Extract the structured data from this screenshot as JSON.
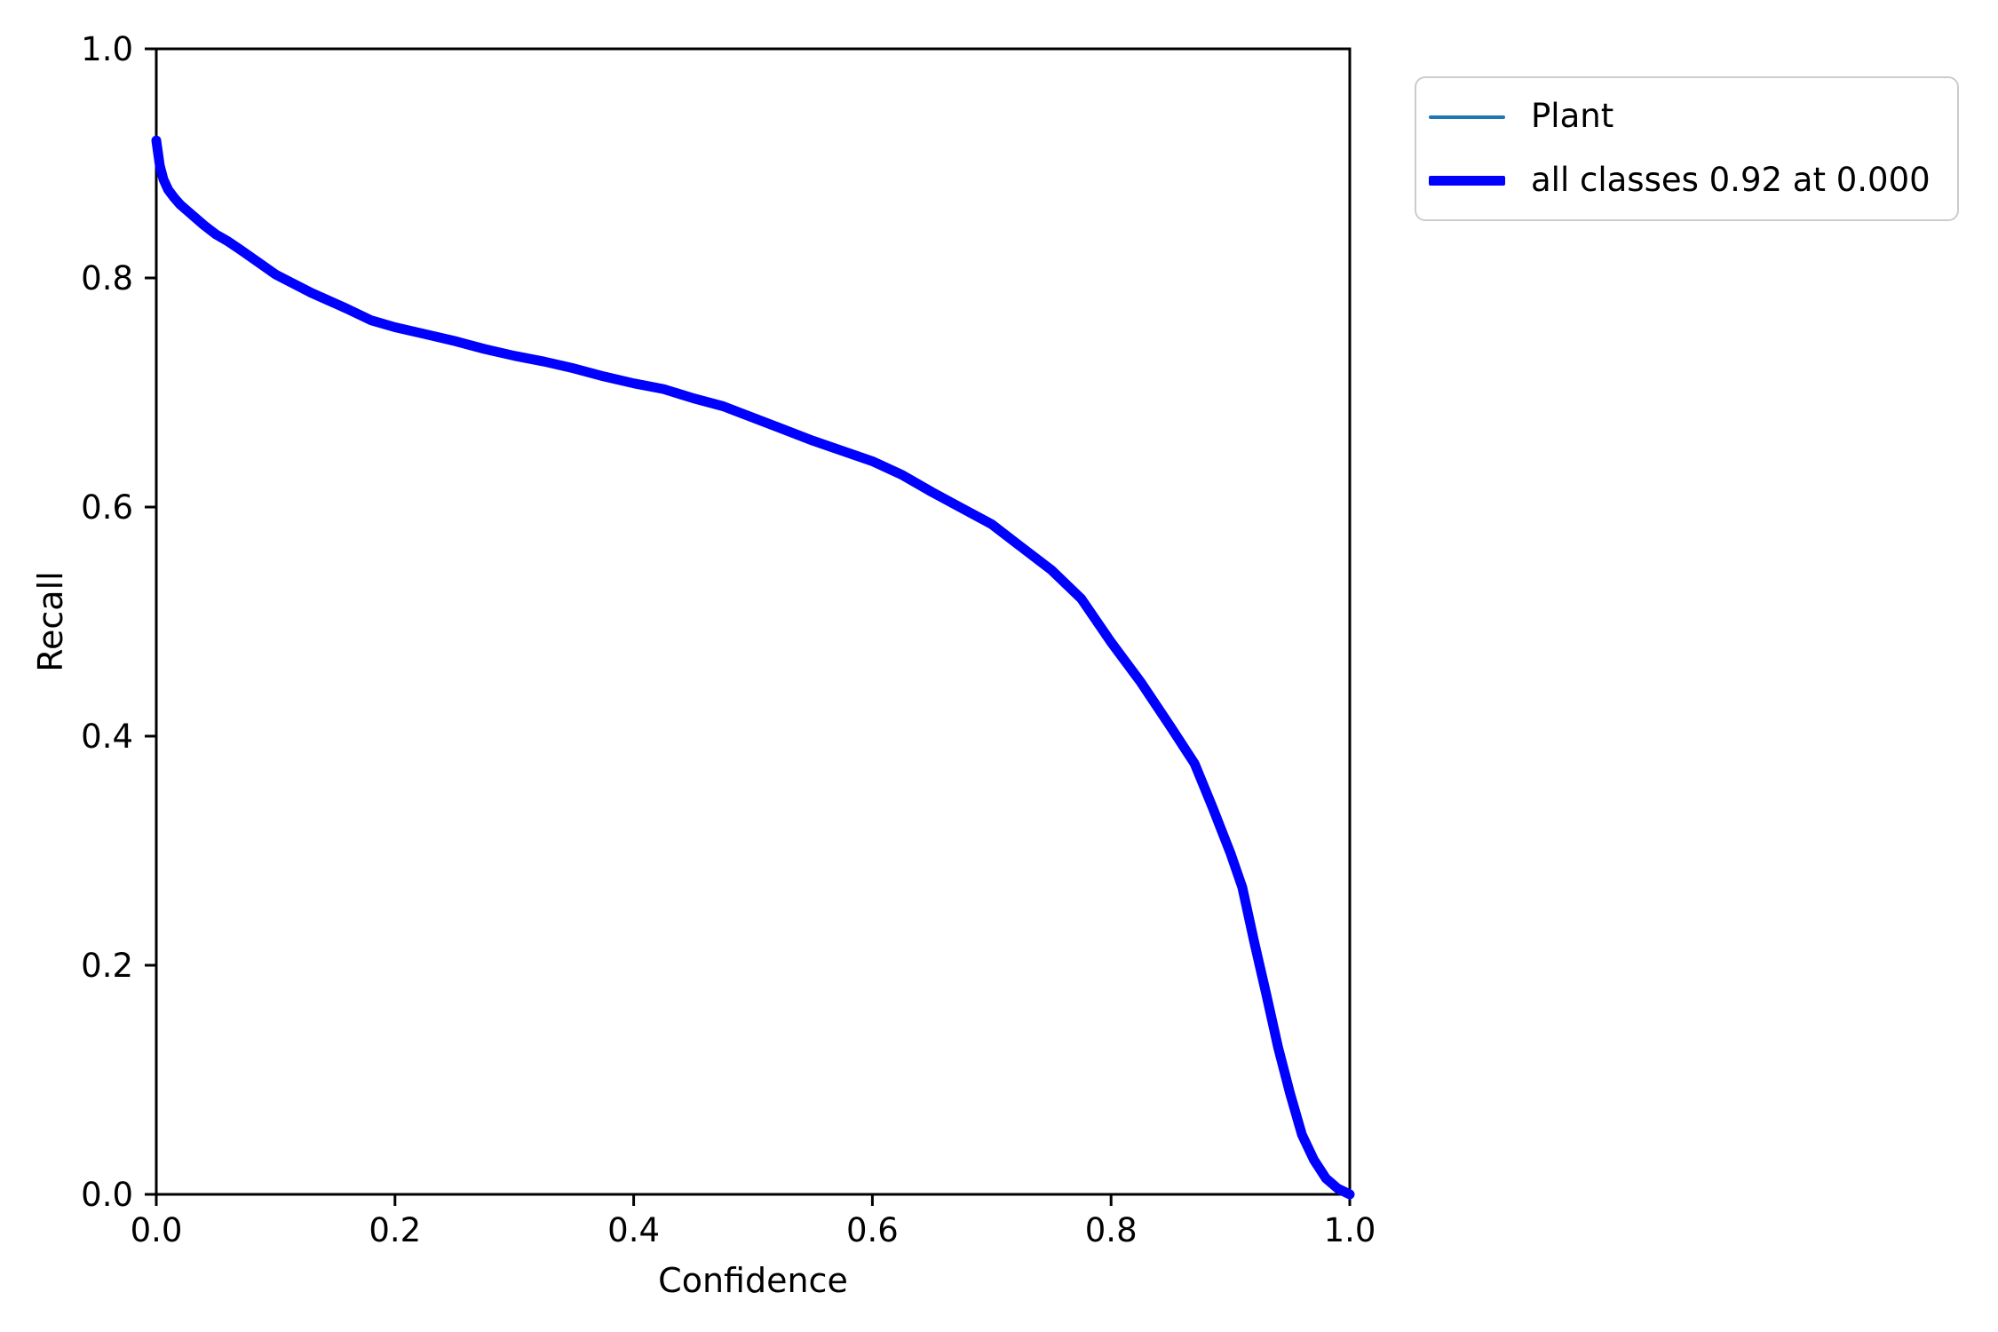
{
  "figure": {
    "background": "#ffffff"
  },
  "chart_data": {
    "type": "line",
    "title": "",
    "xlabel": "Confidence",
    "ylabel": "Recall",
    "xlim": [
      0.0,
      1.0
    ],
    "ylim": [
      0.0,
      1.0
    ],
    "grid": false,
    "axis_color": "#000000",
    "tick_label_color": "#000000",
    "x_tick_labels": [
      "0.0",
      "0.2",
      "0.4",
      "0.6",
      "0.8",
      "1.0"
    ],
    "y_tick_labels": [
      "0.0",
      "0.2",
      "0.4",
      "0.6",
      "0.8",
      "1.0"
    ],
    "legend": {
      "location": "outside-upper-right",
      "border_color": "#cccccc"
    },
    "series": [
      {
        "name": "Plant",
        "color": "#1f77b4",
        "line_width": 4,
        "note_visible_in_plot": "hidden beneath all-classes curve"
      },
      {
        "name": "all classes 0.92 at 0.000",
        "color": "#0000ff",
        "line_width": 11,
        "x": [
          0.0,
          0.003,
          0.006,
          0.01,
          0.015,
          0.02,
          0.03,
          0.04,
          0.05,
          0.06,
          0.07,
          0.085,
          0.1,
          0.115,
          0.13,
          0.145,
          0.16,
          0.18,
          0.2,
          0.225,
          0.25,
          0.275,
          0.3,
          0.325,
          0.35,
          0.375,
          0.4,
          0.425,
          0.45,
          0.475,
          0.5,
          0.525,
          0.55,
          0.575,
          0.6,
          0.625,
          0.65,
          0.675,
          0.7,
          0.725,
          0.75,
          0.775,
          0.8,
          0.825,
          0.85,
          0.87,
          0.885,
          0.9,
          0.91,
          0.92,
          0.93,
          0.94,
          0.95,
          0.96,
          0.97,
          0.98,
          0.99,
          1.0
        ],
        "y": [
          0.92,
          0.898,
          0.886,
          0.877,
          0.87,
          0.864,
          0.855,
          0.846,
          0.838,
          0.832,
          0.825,
          0.814,
          0.803,
          0.795,
          0.787,
          0.78,
          0.773,
          0.763,
          0.757,
          0.751,
          0.745,
          0.738,
          0.732,
          0.727,
          0.721,
          0.714,
          0.708,
          0.703,
          0.695,
          0.688,
          0.678,
          0.668,
          0.658,
          0.649,
          0.64,
          0.628,
          0.613,
          0.599,
          0.585,
          0.565,
          0.545,
          0.52,
          0.482,
          0.447,
          0.408,
          0.376,
          0.338,
          0.298,
          0.268,
          0.22,
          0.175,
          0.128,
          0.088,
          0.052,
          0.03,
          0.014,
          0.005,
          0.0
        ]
      }
    ]
  }
}
